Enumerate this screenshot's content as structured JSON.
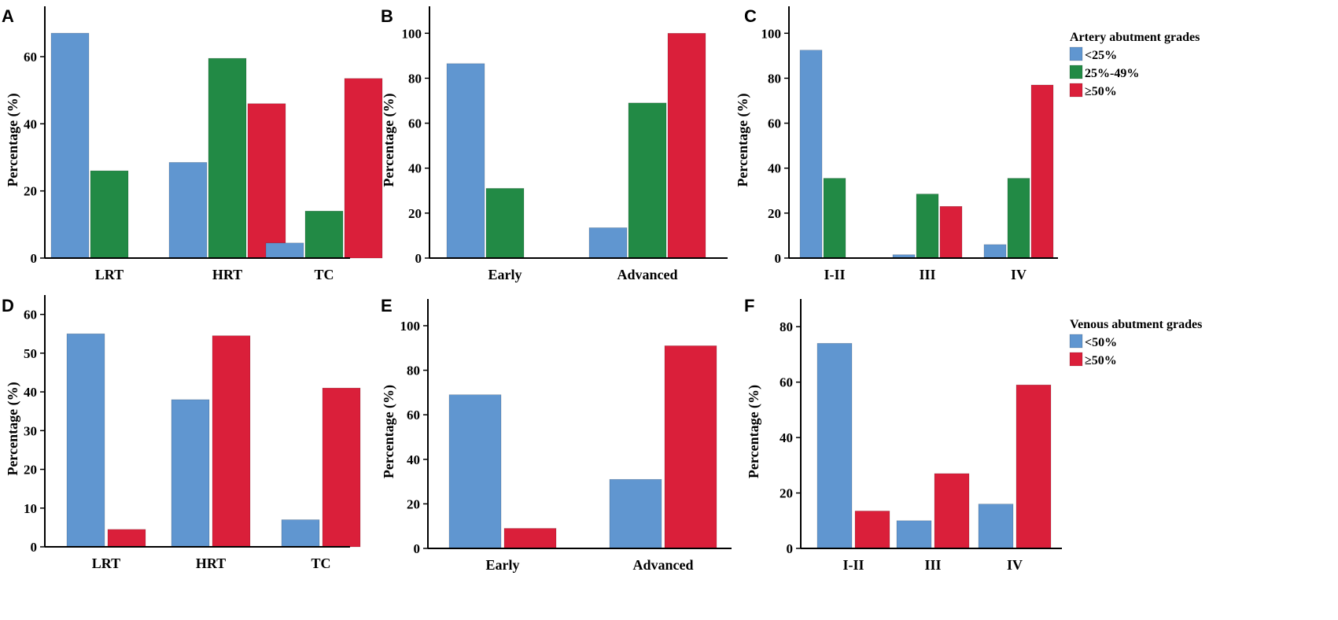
{
  "colors": {
    "blue": "#6096d0",
    "green": "#228a45",
    "red": "#da1f3a"
  },
  "legends": [
    {
      "title": "Artery abutment grades",
      "items": [
        {
          "label": "<25%",
          "color": "#6096d0"
        },
        {
          "label": "25%-49%",
          "color": "#228a45"
        },
        {
          "label": "≥50%",
          "color": "#da1f3a"
        }
      ]
    },
    {
      "title": "Venous abutment grades",
      "items": [
        {
          "label": "<50%",
          "color": "#6096d0"
        },
        {
          "label": "≥50%",
          "color": "#da1f3a"
        }
      ]
    }
  ],
  "chart_data": [
    {
      "panel": "A",
      "type": "bar",
      "ylabel": "Percentage (%)",
      "categories": [
        "LRT",
        "HRT",
        "TC"
      ],
      "yticks": [
        0,
        20,
        40,
        60
      ],
      "ylim": [
        0,
        75
      ],
      "series": [
        {
          "name": "<25%",
          "color": "#6096d0",
          "values": [
            67,
            28.5,
            4.5
          ]
        },
        {
          "name": "25%-49%",
          "color": "#228a45",
          "values": [
            26,
            59.5,
            14
          ]
        },
        {
          "name": "≥50%",
          "color": "#da1f3a",
          "values": [
            0,
            46,
            53.5
          ]
        }
      ]
    },
    {
      "panel": "B",
      "type": "bar",
      "ylabel": "Percentage (%)",
      "categories": [
        "Early",
        "Advanced"
      ],
      "yticks": [
        0,
        20,
        40,
        60,
        80,
        100
      ],
      "ylim": [
        0,
        112
      ],
      "series": [
        {
          "name": "<25%",
          "color": "#6096d0",
          "values": [
            86.5,
            13.5
          ]
        },
        {
          "name": "25%-49%",
          "color": "#228a45",
          "values": [
            31,
            69
          ]
        },
        {
          "name": "≥50%",
          "color": "#da1f3a",
          "values": [
            0,
            100
          ]
        }
      ]
    },
    {
      "panel": "C",
      "type": "bar",
      "ylabel": "Percentage (%)",
      "categories": [
        "I-II",
        "III",
        "IV"
      ],
      "yticks": [
        0,
        20,
        40,
        60,
        80,
        100
      ],
      "ylim": [
        0,
        112
      ],
      "series": [
        {
          "name": "<25%",
          "color": "#6096d0",
          "values": [
            92.5,
            1.5,
            6
          ]
        },
        {
          "name": "25%-49%",
          "color": "#228a45",
          "values": [
            35.5,
            28.5,
            35.5
          ]
        },
        {
          "name": "≥50%",
          "color": "#da1f3a",
          "values": [
            0,
            23,
            77
          ]
        }
      ]
    },
    {
      "panel": "D",
      "type": "bar",
      "ylabel": "Percentage (%)",
      "categories": [
        "LRT",
        "HRT",
        "TC"
      ],
      "yticks": [
        0,
        10,
        20,
        30,
        40,
        50,
        60
      ],
      "ylim": [
        0,
        65
      ],
      "series": [
        {
          "name": "<50%",
          "color": "#6096d0",
          "values": [
            55,
            38,
            7
          ]
        },
        {
          "name": "≥50%",
          "color": "#da1f3a",
          "values": [
            4.5,
            54.5,
            41
          ]
        }
      ]
    },
    {
      "panel": "E",
      "type": "bar",
      "ylabel": "Percentage (%)",
      "categories": [
        "Early",
        "Advanced"
      ],
      "yticks": [
        0,
        20,
        40,
        60,
        80,
        100
      ],
      "ylim": [
        0,
        112
      ],
      "series": [
        {
          "name": "<50%",
          "color": "#6096d0",
          "values": [
            69,
            31
          ]
        },
        {
          "name": "≥50%",
          "color": "#da1f3a",
          "values": [
            9,
            91
          ]
        }
      ]
    },
    {
      "panel": "F",
      "type": "bar",
      "ylabel": "Percentage (%)",
      "categories": [
        "I-II",
        "III",
        "IV"
      ],
      "yticks": [
        0,
        20,
        40,
        60,
        80
      ],
      "ylim": [
        0,
        90
      ],
      "series": [
        {
          "name": "<50%",
          "color": "#6096d0",
          "values": [
            74,
            10,
            16
          ]
        },
        {
          "name": "≥50%",
          "color": "#da1f3a",
          "values": [
            13.5,
            27,
            59
          ]
        }
      ]
    }
  ]
}
